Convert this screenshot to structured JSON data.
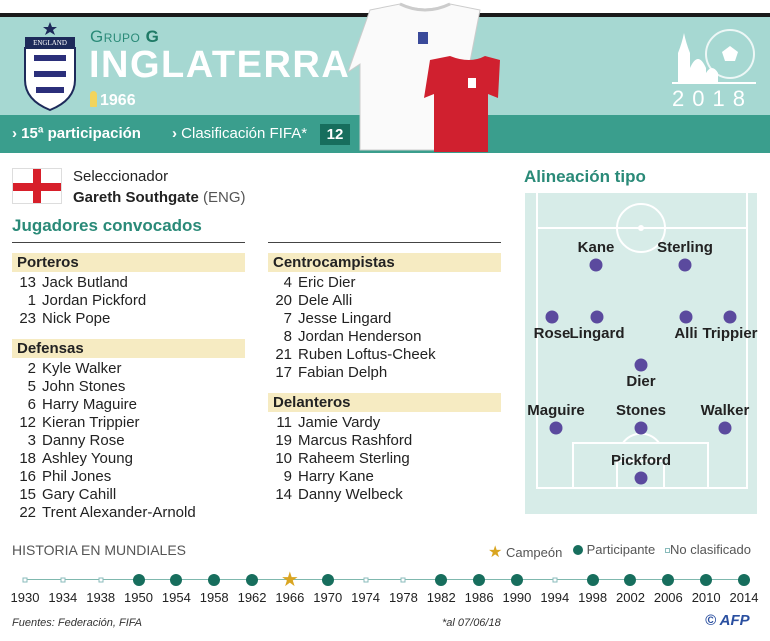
{
  "header": {
    "group_prefix": "Grupo",
    "group": "G",
    "country": "INGLATERRA",
    "crest_text": "ENGLAND",
    "title_year": "1966",
    "participation": "15ª participación",
    "fifa_label": "Clasificación FIFA*",
    "fifa_rank": "12",
    "logo_year": "2018"
  },
  "coach": {
    "label": "Seleccionador",
    "name": "Gareth Southgate",
    "nationality": "(ENG)"
  },
  "squad": {
    "title": "Jugadores convocados",
    "col1": [
      {
        "title": "Porteros",
        "players": [
          [
            "13",
            "Jack Butland"
          ],
          [
            "1",
            "Jordan Pickford"
          ],
          [
            "23",
            "Nick Pope"
          ]
        ]
      },
      {
        "title": "Defensas",
        "players": [
          [
            "2",
            "Kyle Walker"
          ],
          [
            "5",
            "John Stones"
          ],
          [
            "6",
            "Harry Maguire"
          ],
          [
            "12",
            "Kieran Trippier"
          ],
          [
            "3",
            "Danny Rose"
          ],
          [
            "18",
            "Ashley Young"
          ],
          [
            "16",
            "Phil Jones"
          ],
          [
            "15",
            "Gary Cahill"
          ],
          [
            "22",
            "Trent Alexander-Arnold"
          ]
        ]
      }
    ],
    "col2": [
      {
        "title": "Centrocampistas",
        "players": [
          [
            "4",
            "Eric Dier"
          ],
          [
            "20",
            "Dele Alli"
          ],
          [
            "7",
            "Jesse Lingard"
          ],
          [
            "8",
            "Jordan Henderson"
          ],
          [
            "21",
            "Ruben Loftus-Cheek"
          ],
          [
            "17",
            "Fabian Delph"
          ]
        ]
      },
      {
        "title": "Delanteros",
        "players": [
          [
            "11",
            "Jamie Vardy"
          ],
          [
            "19",
            "Marcus Rashford"
          ],
          [
            "10",
            "Raheem Sterling"
          ],
          [
            "9",
            "Harry Kane"
          ],
          [
            "14",
            "Danny Welbeck"
          ]
        ]
      }
    ]
  },
  "lineup": {
    "title": "Alineación tipo",
    "players": [
      "Kane",
      "Sterling",
      "Rose",
      "Lingard",
      "Alli",
      "Trippier",
      "Dier",
      "Maguire",
      "Stones",
      "Walker",
      "Pickford"
    ]
  },
  "history": {
    "title": "HISTORIA EN MUNDIALES",
    "legend": {
      "champion": "Campeón",
      "participant": "Participante",
      "not_qualified": "No clasificado"
    },
    "years": [
      "1930",
      "1934",
      "1938",
      "1950",
      "1954",
      "1958",
      "1962",
      "1966",
      "1970",
      "1974",
      "1978",
      "1982",
      "1986",
      "1990",
      "1994",
      "1998",
      "2002",
      "2006",
      "2010",
      "2014"
    ],
    "status": [
      "n",
      "n",
      "n",
      "p",
      "p",
      "p",
      "p",
      "c",
      "p",
      "n",
      "n",
      "p",
      "p",
      "p",
      "n",
      "p",
      "p",
      "p",
      "p",
      "p"
    ]
  },
  "footer": {
    "sources": "Fuentes: Federación, FIFA",
    "note": "*al 07/06/18",
    "credit": "© AFP"
  },
  "colors": {
    "header": "#a6d8d2",
    "strip": "#3a9e8d",
    "accent": "#2a8a78",
    "player_dot": "#5b4a9e",
    "champion": "#d9a521",
    "section_band": "#f6ebc2"
  }
}
